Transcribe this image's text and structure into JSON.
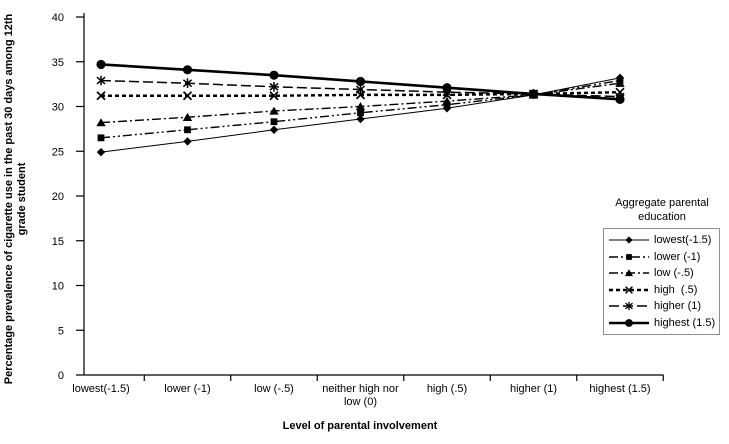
{
  "axes": {
    "y_title": "Percentage prevalence of cigarette use in the past 30 days among 12th\ngrade student",
    "x_title": "Level of parental involvement"
  },
  "legend": {
    "title": "Aggregate parental\neducation"
  },
  "chart_data": {
    "type": "line",
    "title": "",
    "xlabel": "Level of parental involvement",
    "ylabel": "Percentage prevalence of cigarette use in the past 30 days among 12th grade student",
    "categories": [
      "lowest(-1.5)",
      "lower (-1)",
      "low (-.5)",
      "neither high nor\nlow (0)",
      "high  (.5)",
      "higher (1)",
      "highest (1.5)"
    ],
    "ylim": [
      0,
      40
    ],
    "yticks": [
      0,
      5,
      10,
      15,
      20,
      25,
      30,
      35,
      40
    ],
    "grid": false,
    "legend_position": "right",
    "legend_title": "Aggregate parental education",
    "series": [
      {
        "name": "lowest(-1.5)",
        "marker": "diamond",
        "line_style": "solid-thin",
        "values": [
          24.9,
          26.1,
          27.4,
          28.6,
          29.8,
          31.3,
          33.2
        ]
      },
      {
        "name": "lower (-1)",
        "marker": "square",
        "line_style": "dash-dot-dot",
        "values": [
          26.5,
          27.4,
          28.3,
          29.3,
          30.2,
          31.3,
          32.9
        ]
      },
      {
        "name": "low (-.5)",
        "marker": "triangle",
        "line_style": "dash-dot",
        "values": [
          28.2,
          28.8,
          29.5,
          30.0,
          30.6,
          31.3,
          32.6
        ]
      },
      {
        "name": "high  (.5)",
        "marker": "x",
        "line_style": "bold-short-dash",
        "values": [
          31.2,
          31.2,
          31.2,
          31.3,
          31.3,
          31.4,
          31.6
        ]
      },
      {
        "name": "higher (1)",
        "marker": "asterisk",
        "line_style": "long-dash",
        "values": [
          32.9,
          32.6,
          32.2,
          31.9,
          31.6,
          31.4,
          31.1
        ]
      },
      {
        "name": "highest (1.5)",
        "marker": "circle",
        "line_style": "solid-thick",
        "values": [
          34.7,
          34.1,
          33.5,
          32.8,
          32.1,
          31.4,
          30.8
        ]
      }
    ],
    "colors": {
      "foreground": "#000000",
      "background": "#ffffff",
      "legend_border": "#8f8f8f"
    }
  }
}
